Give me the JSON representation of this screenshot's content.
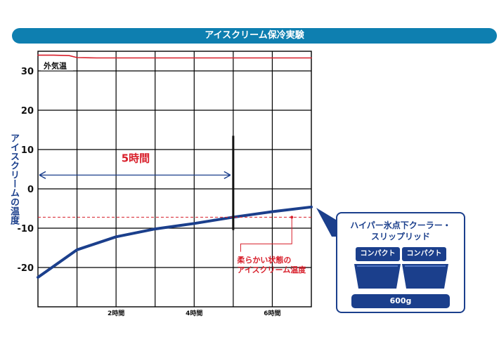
{
  "title": "アイスクリーム保冷実験",
  "colors": {
    "banner": "#0e7fb0",
    "navy": "#1b3f8c",
    "red": "#d81e2a",
    "grid": "#000000"
  },
  "chart_data": {
    "type": "line",
    "xlabel": "",
    "ylabel": "アイスクリームの温度",
    "xlim": [
      0,
      7
    ],
    "ylim": [
      -30,
      35
    ],
    "grid": true,
    "x_ticks": [
      {
        "value": 2,
        "label": "2時間"
      },
      {
        "value": 4,
        "label": "4時間"
      },
      {
        "value": 6,
        "label": "6時間"
      }
    ],
    "y_ticks": [
      -20,
      -10,
      0,
      10,
      20,
      30
    ],
    "series": [
      {
        "name": "外気温",
        "color": "#d81e2a",
        "x": [
          0,
          0.4,
          0.8,
          1.0,
          1.5,
          3,
          5,
          7
        ],
        "y": [
          34,
          34,
          33.9,
          33.4,
          33.3,
          33.3,
          33.3,
          33.3
        ]
      },
      {
        "name": "",
        "color": "#1b3f8c",
        "x": [
          0,
          1,
          2,
          3,
          4,
          5,
          6,
          7
        ],
        "y": [
          -22.5,
          -15.5,
          -12.2,
          -10.2,
          -8.8,
          -7.2,
          -5.8,
          -4.6
        ]
      }
    ],
    "reference_line": {
      "y": -7.2,
      "color": "#d81e2a",
      "style": "dashed"
    },
    "marker_line": {
      "x": 5,
      "y_from": -10.5,
      "y_to": 13.5
    },
    "annotations": {
      "duration_label": "5時間",
      "duration_from_x": 0,
      "duration_to_x": 5,
      "duration_y": 3.5,
      "soft_state": "柔らかい状態の\nアイスクリーム温度"
    }
  },
  "product": {
    "title_line1": "ハイパー氷点下クーラー・",
    "title_line2": "スリップリッド",
    "tag_left": "コンパクト",
    "tag_right": "コンパクト",
    "capacity": "600g"
  }
}
